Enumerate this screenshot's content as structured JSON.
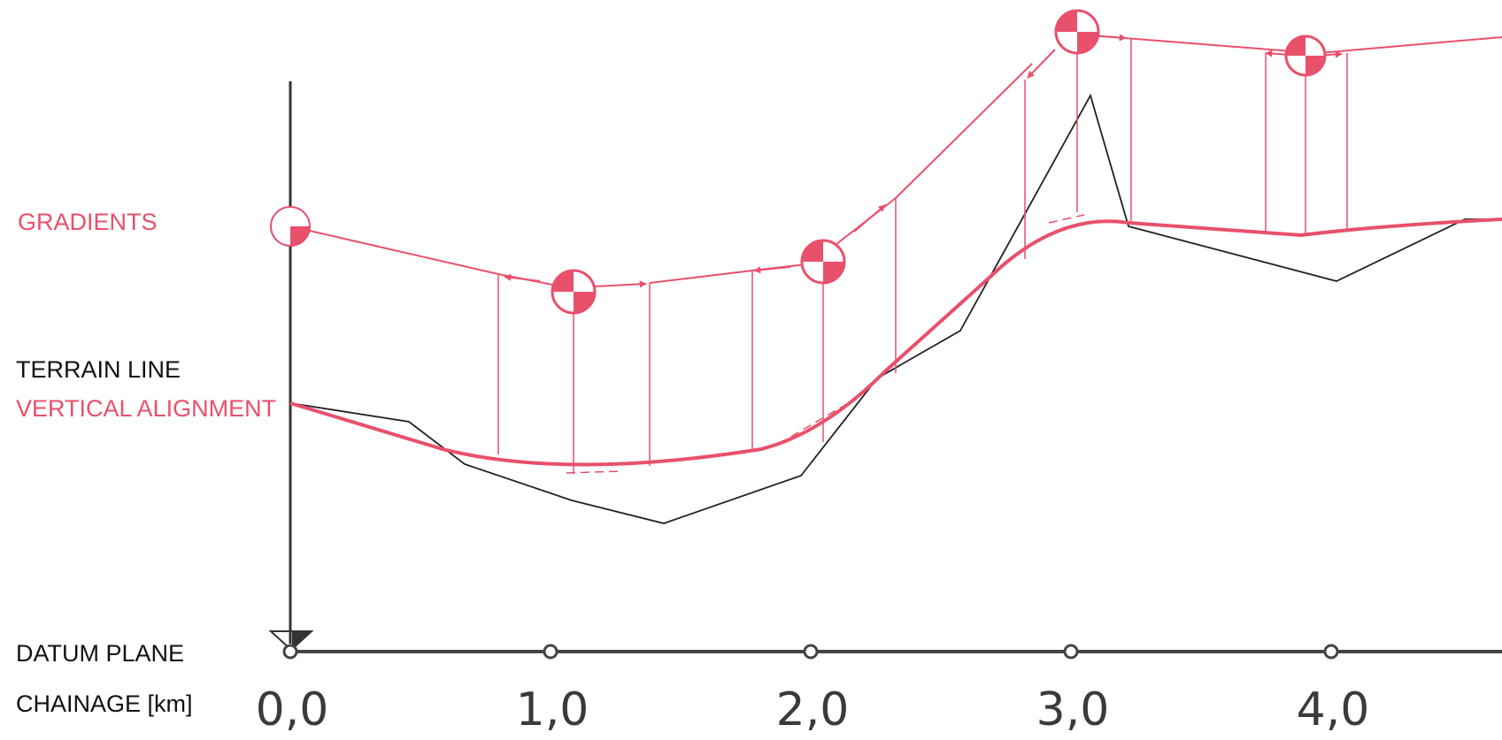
{
  "labels": {
    "gradients": "GRADIENTS",
    "terrain_line": "TERRAIN LINE",
    "vertical_alignment": "VERTICAL ALIGNMENT",
    "datum_plane": "DATUM PLANE",
    "chainage": "CHAINAGE [km]"
  },
  "chainage_ticks": [
    "0,0",
    "1,0",
    "2,0",
    "3,0",
    "4,0"
  ],
  "colors": {
    "alignment": "#e8506b",
    "terrain": "#222222",
    "axis": "#444444"
  }
}
